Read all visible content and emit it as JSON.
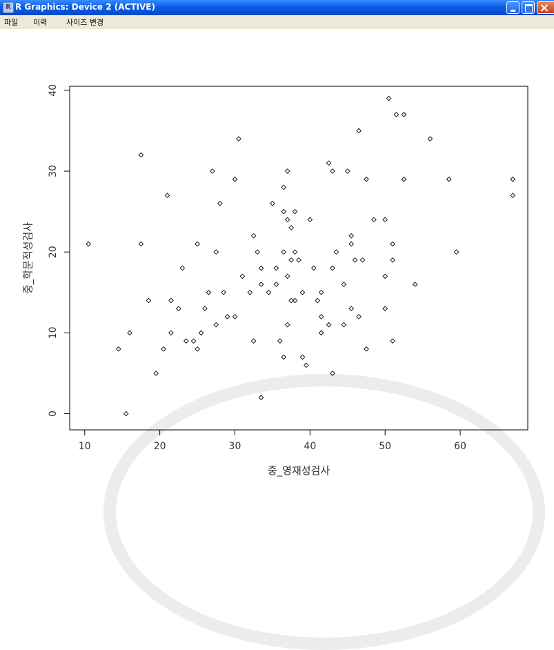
{
  "window": {
    "title": "R Graphics: Device 2 (ACTIVE)",
    "app_icon": "r-logo-icon"
  },
  "menu": {
    "items": [
      "파일",
      "이력",
      "사이즈 변경"
    ]
  },
  "chart_data": {
    "type": "scatter",
    "xlabel": "중_영재성검사",
    "ylabel": "중_학문적성검사",
    "xlim": [
      8,
      69
    ],
    "ylim": [
      -2,
      40.5
    ],
    "x_ticks": [
      "10",
      "20",
      "30",
      "40",
      "50",
      "60"
    ],
    "y_ticks": [
      "0",
      "10",
      "20",
      "30",
      "40"
    ],
    "point_style": "open-diamond",
    "points": [
      [
        10.5,
        21
      ],
      [
        14.5,
        8
      ],
      [
        15.5,
        0
      ],
      [
        16,
        10
      ],
      [
        17.5,
        32
      ],
      [
        17.5,
        21
      ],
      [
        18.5,
        14
      ],
      [
        19.5,
        5
      ],
      [
        20.5,
        8
      ],
      [
        21,
        27
      ],
      [
        21.5,
        14
      ],
      [
        21.5,
        10
      ],
      [
        22.5,
        13
      ],
      [
        23,
        18
      ],
      [
        23.5,
        9
      ],
      [
        24.5,
        9
      ],
      [
        25,
        21
      ],
      [
        25,
        8
      ],
      [
        25.5,
        10
      ],
      [
        26,
        13
      ],
      [
        26.5,
        15
      ],
      [
        27,
        30
      ],
      [
        27.5,
        20
      ],
      [
        27.5,
        11
      ],
      [
        28,
        26
      ],
      [
        28.5,
        15
      ],
      [
        29,
        12
      ],
      [
        30,
        29
      ],
      [
        30,
        12
      ],
      [
        30.5,
        34
      ],
      [
        31,
        17
      ],
      [
        32,
        15
      ],
      [
        32.5,
        22
      ],
      [
        32.5,
        9
      ],
      [
        33,
        20
      ],
      [
        33.5,
        18
      ],
      [
        33.5,
        16
      ],
      [
        33.5,
        2
      ],
      [
        34.5,
        15
      ],
      [
        35,
        26
      ],
      [
        35.5,
        18
      ],
      [
        35.5,
        16
      ],
      [
        36,
        9
      ],
      [
        36.5,
        28
      ],
      [
        36.5,
        25
      ],
      [
        36.5,
        20
      ],
      [
        36.5,
        7
      ],
      [
        37,
        30
      ],
      [
        37,
        24
      ],
      [
        37,
        17
      ],
      [
        37,
        11
      ],
      [
        37.5,
        23
      ],
      [
        37.5,
        19
      ],
      [
        37.5,
        14
      ],
      [
        38,
        25
      ],
      [
        38,
        20
      ],
      [
        38,
        14
      ],
      [
        38.5,
        19
      ],
      [
        39,
        15
      ],
      [
        39,
        7
      ],
      [
        39.5,
        6
      ],
      [
        40,
        24
      ],
      [
        40.5,
        18
      ],
      [
        41,
        14
      ],
      [
        41.5,
        15
      ],
      [
        41.5,
        12
      ],
      [
        41.5,
        10
      ],
      [
        42.5,
        31
      ],
      [
        42.5,
        11
      ],
      [
        43,
        30
      ],
      [
        43,
        18
      ],
      [
        43,
        5
      ],
      [
        43.5,
        20
      ],
      [
        44.5,
        16
      ],
      [
        44.5,
        11
      ],
      [
        45,
        30
      ],
      [
        45.5,
        22
      ],
      [
        45.5,
        21
      ],
      [
        45.5,
        13
      ],
      [
        46,
        19
      ],
      [
        46.5,
        35
      ],
      [
        46.5,
        12
      ],
      [
        47,
        19
      ],
      [
        47.5,
        29
      ],
      [
        47.5,
        8
      ],
      [
        48.5,
        24
      ],
      [
        50,
        24
      ],
      [
        50,
        17
      ],
      [
        50,
        13
      ],
      [
        50.5,
        39
      ],
      [
        51,
        21
      ],
      [
        51,
        19
      ],
      [
        51,
        9
      ],
      [
        51.5,
        37
      ],
      [
        52.5,
        37
      ],
      [
        52.5,
        29
      ],
      [
        54,
        16
      ],
      [
        56,
        34
      ],
      [
        58.5,
        29
      ],
      [
        59.5,
        20
      ],
      [
        67,
        29
      ],
      [
        67,
        27
      ]
    ]
  }
}
